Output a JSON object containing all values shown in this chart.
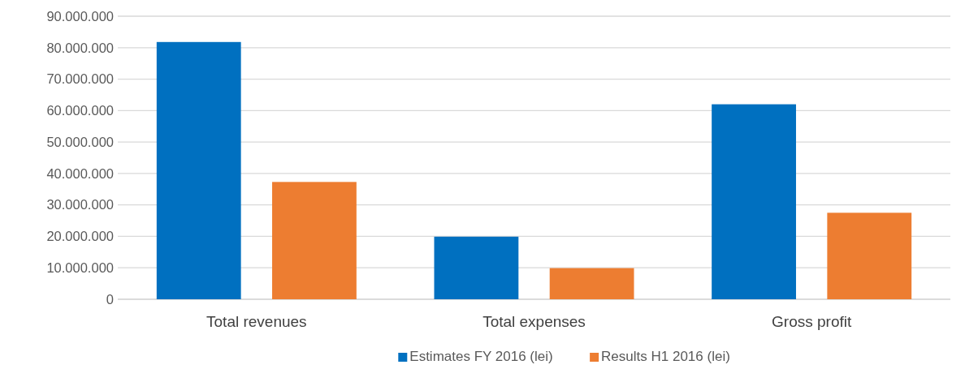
{
  "chart_data": {
    "type": "bar",
    "categories": [
      "Total revenues",
      "Total expenses",
      "Gross profit"
    ],
    "series": [
      {
        "name": "Estimates FY 2016 (lei)",
        "color": "#0070c0",
        "values": [
          81800000,
          19900000,
          62000000
        ]
      },
      {
        "name": "Results H1 2016 (lei)",
        "color": "#ed7d31",
        "values": [
          37300000,
          9900000,
          27500000
        ]
      }
    ],
    "ylim": [
      0,
      90000000
    ],
    "yticks": [
      {
        "value": 0,
        "label": "0"
      },
      {
        "value": 10000000,
        "label": "10.000.000"
      },
      {
        "value": 20000000,
        "label": "20.000.000"
      },
      {
        "value": 30000000,
        "label": "30.000.000"
      },
      {
        "value": 40000000,
        "label": "40.000.000"
      },
      {
        "value": 50000000,
        "label": "50.000.000"
      },
      {
        "value": 60000000,
        "label": "60.000.000"
      },
      {
        "value": 70000000,
        "label": "70.000.000"
      },
      {
        "value": 80000000,
        "label": "80.000.000"
      },
      {
        "value": 90000000,
        "label": "90.000.000"
      }
    ],
    "grid": "y",
    "legend": "bottom"
  }
}
